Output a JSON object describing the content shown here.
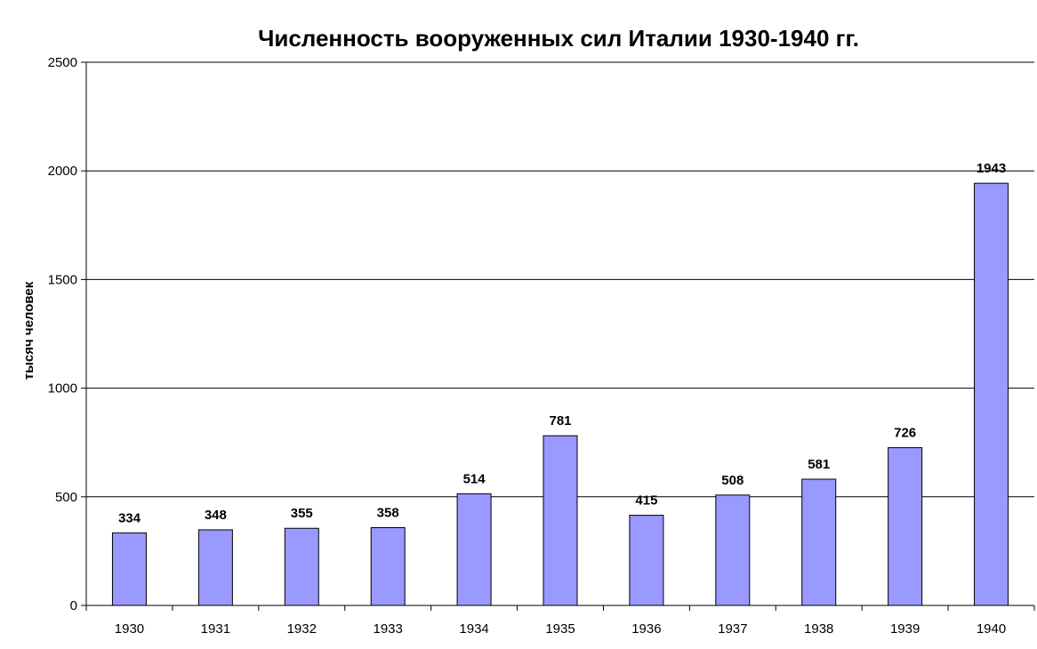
{
  "chart_data": {
    "type": "bar",
    "title": "Численность вооруженных сил Италии 1930-1940 гг.",
    "xlabel": "",
    "ylabel": "тысяч человек",
    "categories": [
      "1930",
      "1931",
      "1932",
      "1933",
      "1934",
      "1935",
      "1936",
      "1937",
      "1938",
      "1939",
      "1940"
    ],
    "values": [
      334,
      348,
      355,
      358,
      514,
      781,
      415,
      508,
      581,
      726,
      1943
    ],
    "ylim": [
      0,
      2500
    ],
    "yticks": [
      0,
      500,
      1000,
      1500,
      2000,
      2500
    ],
    "grid": true,
    "legend": "none",
    "bar_color": "#9999ff"
  }
}
